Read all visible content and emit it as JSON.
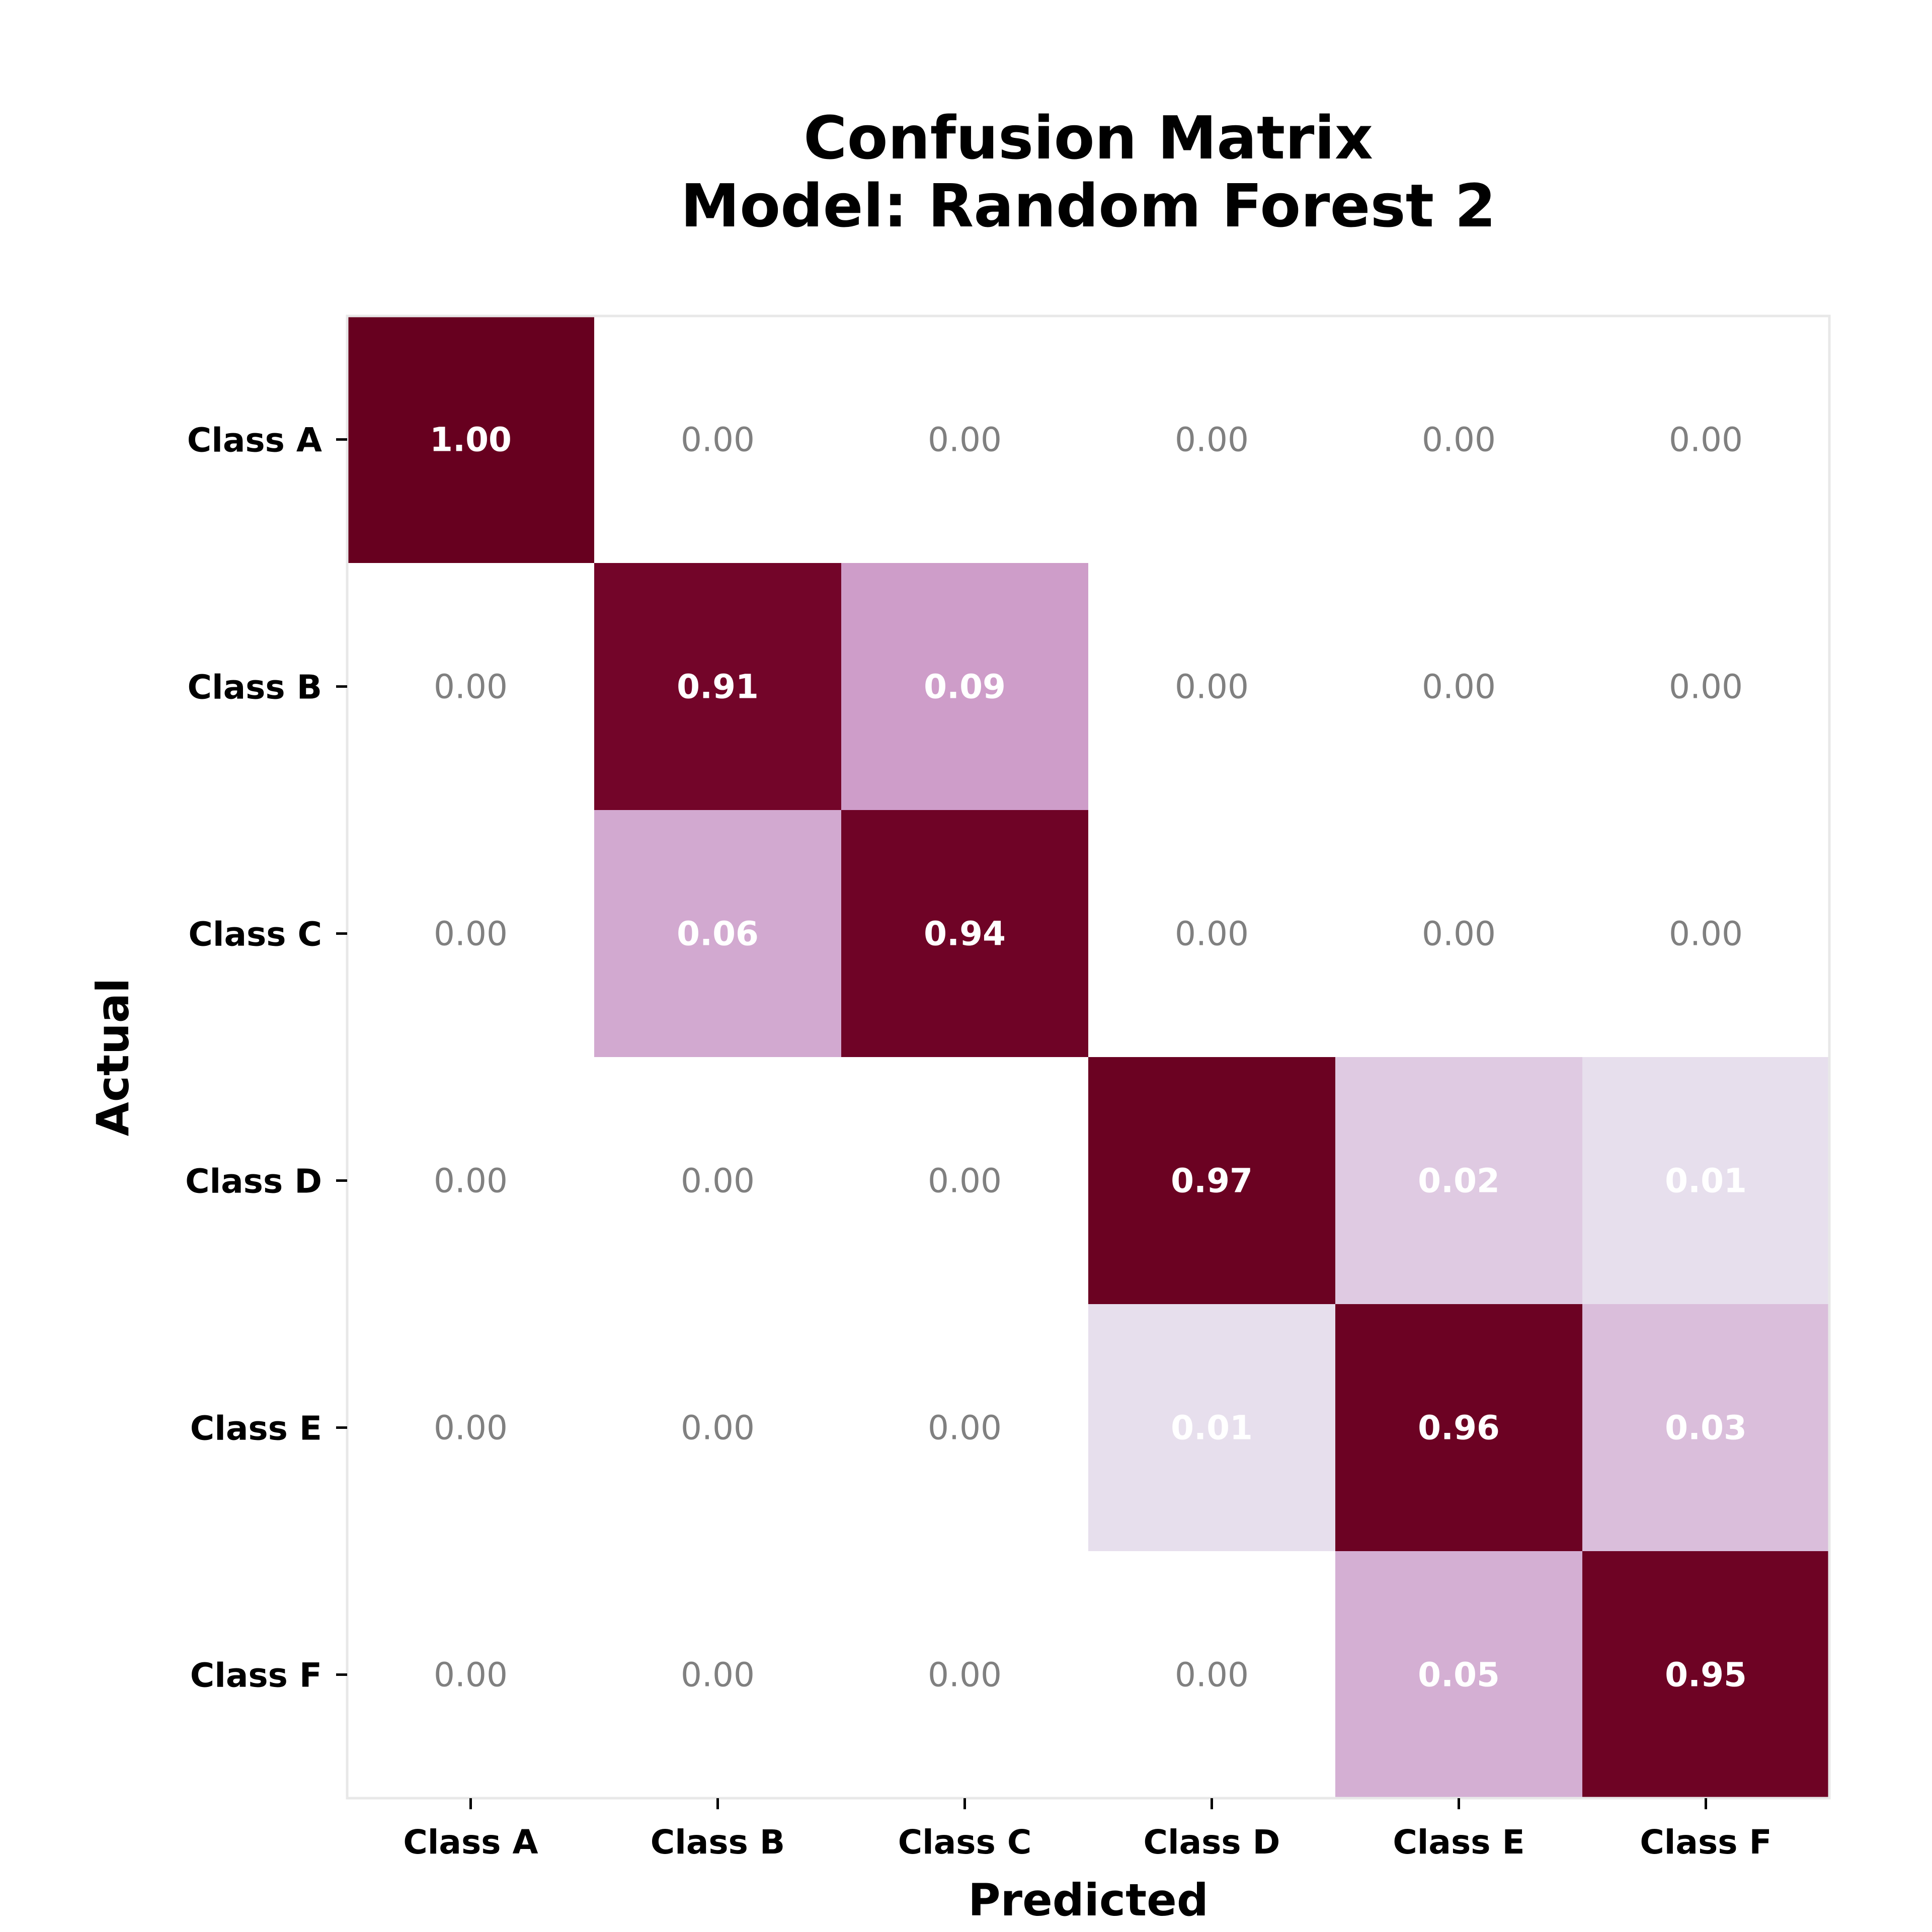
{
  "chart_data": {
    "type": "heatmap",
    "title": [
      "Confusion Matrix",
      "Model: Random Forest 2"
    ],
    "xlabel": "Predicted",
    "ylabel": "Actual",
    "x_categories": [
      "Class A",
      "Class B",
      "Class C",
      "Class D",
      "Class E",
      "Class F"
    ],
    "y_categories": [
      "Class A",
      "Class B",
      "Class C",
      "Class D",
      "Class E",
      "Class F"
    ],
    "values": [
      [
        1.0,
        0.0,
        0.0,
        0.0,
        0.0,
        0.0
      ],
      [
        0.0,
        0.91,
        0.09,
        0.0,
        0.0,
        0.0
      ],
      [
        0.0,
        0.06,
        0.94,
        0.0,
        0.0,
        0.0
      ],
      [
        0.0,
        0.0,
        0.0,
        0.97,
        0.02,
        0.01
      ],
      [
        0.0,
        0.0,
        0.0,
        0.01,
        0.96,
        0.03
      ],
      [
        0.0,
        0.0,
        0.0,
        0.0,
        0.05,
        0.95
      ]
    ],
    "value_format": "0.00",
    "colormap": "PuRd",
    "grid": false,
    "colors": {
      "zero_cell": "#ffffff",
      "low_cell": "#e7dfed",
      "high_cell": "#67001f",
      "zero_text": "#808080",
      "nonzero_text": "#ffffff",
      "frame": "#e8e8e8"
    }
  }
}
